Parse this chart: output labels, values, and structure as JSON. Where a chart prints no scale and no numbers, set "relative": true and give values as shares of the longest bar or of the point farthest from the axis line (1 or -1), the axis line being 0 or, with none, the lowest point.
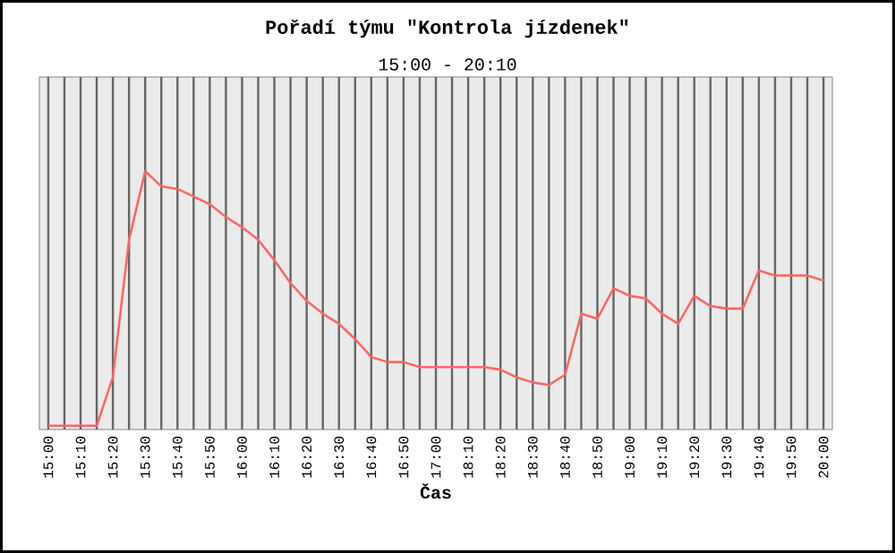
{
  "chart_data": {
    "type": "line",
    "title": "Pořadí týmu \"Kontrola jízdenek\"",
    "subtitle": "15:00 - 20:10",
    "xlabel": "Čas",
    "categories": [
      "15:00",
      null,
      "15:10",
      null,
      "15:20",
      null,
      "15:30",
      null,
      "15:40",
      null,
      "15:50",
      null,
      "16:00",
      null,
      "16:10",
      null,
      "16:20",
      null,
      "16:30",
      null,
      "16:40",
      null,
      "16:50",
      null,
      "17:00",
      null,
      "18:10",
      null,
      "18:20",
      null,
      "18:30",
      null,
      "18:40",
      null,
      "18:50",
      null,
      "19:00",
      null,
      "19:10",
      null,
      "19:20",
      null,
      "19:30",
      null,
      "19:40",
      null,
      "19:50",
      null,
      "20:00"
    ],
    "relative": true,
    "grid": "x",
    "marker": "none",
    "line_style": "solid",
    "series": [
      {
        "color": "#ff6666",
        "values": [
          0,
          0,
          0,
          0,
          0.19,
          0.73,
          1,
          0.94,
          0.93,
          0.9,
          0.87,
          0.82,
          0.78,
          0.73,
          0.65,
          0.56,
          0.49,
          0.44,
          0.4,
          0.34,
          0.27,
          0.25,
          0.25,
          0.23,
          0.23,
          0.23,
          0.23,
          0.23,
          0.22,
          0.19,
          0.17,
          0.16,
          0.2,
          0.44,
          0.42,
          0.54,
          0.51,
          0.5,
          0.44,
          0.4,
          0.51,
          0.47,
          0.46,
          0.46,
          0.61,
          0.59,
          0.59,
          0.59,
          0.57
        ]
      }
    ]
  }
}
